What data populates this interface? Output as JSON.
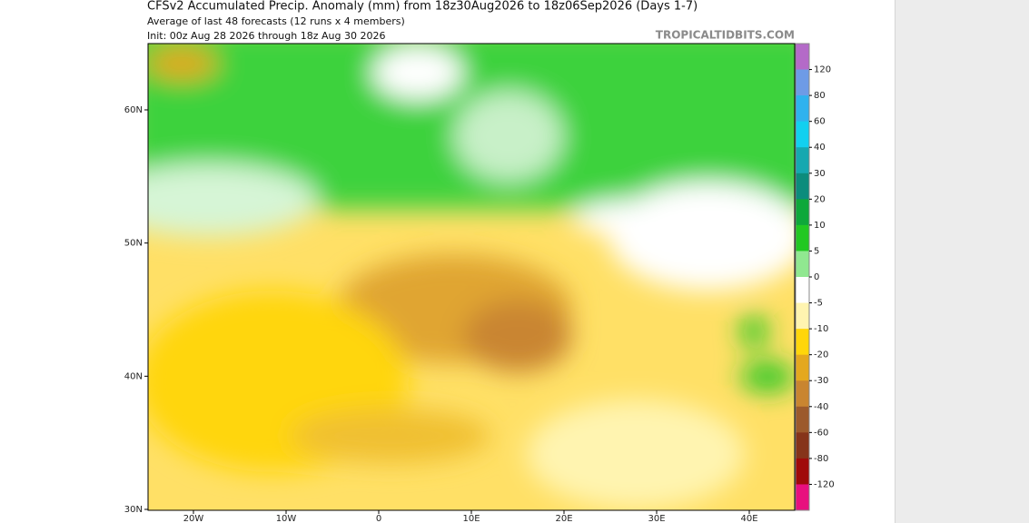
{
  "header": {
    "title": "CFSv2 Accumulated Precip. Anomaly (mm) from 18z30Aug2026 to 18z06Sep2026 (Days 1-7)",
    "subtitle": "Average of last 48 forecasts (12 runs x 4 members)",
    "init": "Init: 00z Aug 28 2026 through 18z Aug 30 2026",
    "credit": "TROPICALTIDBITS.COM"
  },
  "map": {
    "lat_ticks": [
      {
        "value": 60,
        "label": "60N"
      },
      {
        "value": 50,
        "label": "50N"
      },
      {
        "value": 40,
        "label": "40N"
      },
      {
        "value": 30,
        "label": "30N"
      }
    ],
    "lon_ticks": [
      {
        "value": -20,
        "label": "20W"
      },
      {
        "value": -10,
        "label": "10W"
      },
      {
        "value": 0,
        "label": "0"
      },
      {
        "value": 10,
        "label": "10E"
      },
      {
        "value": 20,
        "label": "20E"
      },
      {
        "value": 30,
        "label": "30E"
      },
      {
        "value": 40,
        "label": "40E"
      }
    ]
  },
  "colorbar": {
    "ticks": [
      120,
      80,
      60,
      40,
      30,
      20,
      10,
      5,
      0,
      -5,
      -10,
      -20,
      -30,
      -40,
      -60,
      -80,
      -120
    ],
    "colors": [
      "#b46ac8",
      "#6e9be6",
      "#2fb2ee",
      "#12d0f0",
      "#16a8b0",
      "#0c8c7c",
      "#0ea83a",
      "#22c822",
      "#90e890",
      "#ffffff",
      "#fff4b0",
      "#ffd60a",
      "#e4a81e",
      "#c98530",
      "#9c5a2c",
      "#86341a",
      "#a00a0a",
      "#e8107e"
    ]
  }
}
